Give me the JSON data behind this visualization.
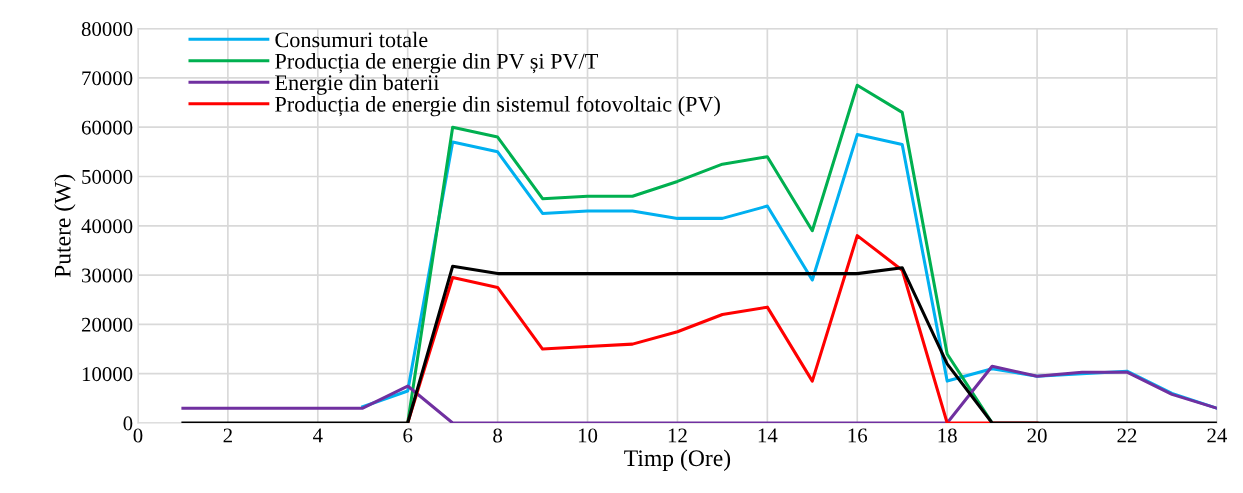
{
  "chart_data": {
    "type": "line",
    "xlabel": "Timp (Ore)",
    "ylabel": "Putere (W)",
    "x": [
      1,
      2,
      3,
      4,
      5,
      6,
      7,
      8,
      9,
      10,
      11,
      12,
      13,
      14,
      15,
      16,
      17,
      18,
      19,
      20,
      21,
      22,
      23,
      24
    ],
    "series": [
      {
        "name": "Consumuri totale",
        "color": "#00b0f0",
        "values": [
          null,
          null,
          null,
          null,
          3300,
          6500,
          57000,
          55000,
          42500,
          43000,
          43000,
          41500,
          41500,
          44000,
          29000,
          58500,
          56500,
          8500,
          11000,
          9500,
          10000,
          10500,
          6000,
          3000
        ]
      },
      {
        "name": "Producția de energie din PV și PV/T",
        "color": "#00b050",
        "values": [
          null,
          null,
          null,
          null,
          null,
          0,
          60000,
          58000,
          45500,
          46000,
          46000,
          49000,
          52500,
          54000,
          39000,
          68500,
          63000,
          14000,
          0,
          null,
          null,
          null,
          null,
          null
        ]
      },
      {
        "name": "Energie din baterii",
        "color": "#7030a0",
        "values": [
          3000,
          3000,
          3000,
          3000,
          3000,
          7500,
          0,
          0,
          0,
          0,
          0,
          0,
          0,
          0,
          0,
          0,
          0,
          0,
          11500,
          9500,
          10300,
          10300,
          5800,
          3000
        ]
      },
      {
        "name": "Producția de energie din sistemul fotovoltaic (PV)",
        "color": "#ff0000",
        "values": [
          null,
          null,
          null,
          null,
          null,
          0,
          29500,
          27500,
          15000,
          15500,
          16000,
          18500,
          22000,
          23500,
          8500,
          38000,
          31000,
          0,
          0,
          0,
          null,
          null,
          null,
          null
        ]
      },
      {
        "color": "#000000",
        "values": [
          0,
          0,
          0,
          0,
          0,
          0,
          31800,
          30300,
          30300,
          30300,
          30300,
          30300,
          30300,
          30300,
          30300,
          30300,
          31500,
          12000,
          0,
          0,
          0,
          0,
          0,
          0
        ]
      }
    ],
    "xlim": [
      0,
      24
    ],
    "xticks": [
      0,
      2,
      4,
      6,
      8,
      10,
      12,
      14,
      16,
      18,
      20,
      22,
      24
    ],
    "ylim": [
      0,
      80000
    ],
    "yticks": [
      0,
      10000,
      20000,
      30000,
      40000,
      50000,
      60000,
      70000,
      80000
    ],
    "grid": true,
    "legend": "top left",
    "marker": "none",
    "line_style": "solid"
  }
}
